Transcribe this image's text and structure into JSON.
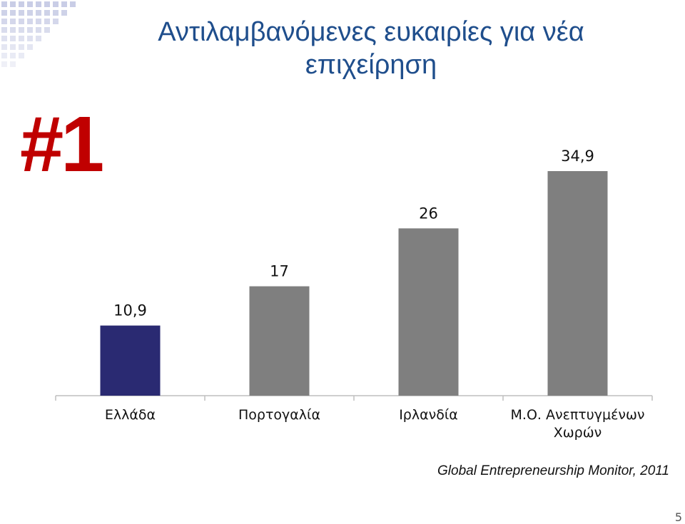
{
  "slide": {
    "title": "Αντιλαμβανόμενες ευκαιρίες για νέα επιχείρηση",
    "rank_label": "#1",
    "source": "Global Entrepreneurship Monitor, 2011",
    "page_number": "5"
  },
  "colors": {
    "title": "#1f4e8c",
    "rank": "#c00000",
    "highlight_bar": "#2a2a72",
    "bar": "#7f7f7f",
    "axis": "#bfbfbf",
    "decoration": "#c9cde6"
  },
  "chart_data": {
    "type": "bar",
    "categories": [
      "Ελλάδα",
      "Πορτογαλία",
      "Ιρλανδία",
      "Μ.Ο. Ανεπτυγμένων Χωρών"
    ],
    "category_lines": [
      [
        "Ελλάδα"
      ],
      [
        "Πορτογαλία"
      ],
      [
        "Ιρλανδία"
      ],
      [
        "Μ.Ο. Ανεπτυγμένων",
        "Χωρών"
      ]
    ],
    "values": [
      10.9,
      17,
      26,
      34.9
    ],
    "value_labels": [
      "10,9",
      "17",
      "26",
      "34,9"
    ],
    "highlight_index": 0,
    "ylim": [
      0,
      35
    ],
    "grid": false,
    "legend": "none"
  }
}
